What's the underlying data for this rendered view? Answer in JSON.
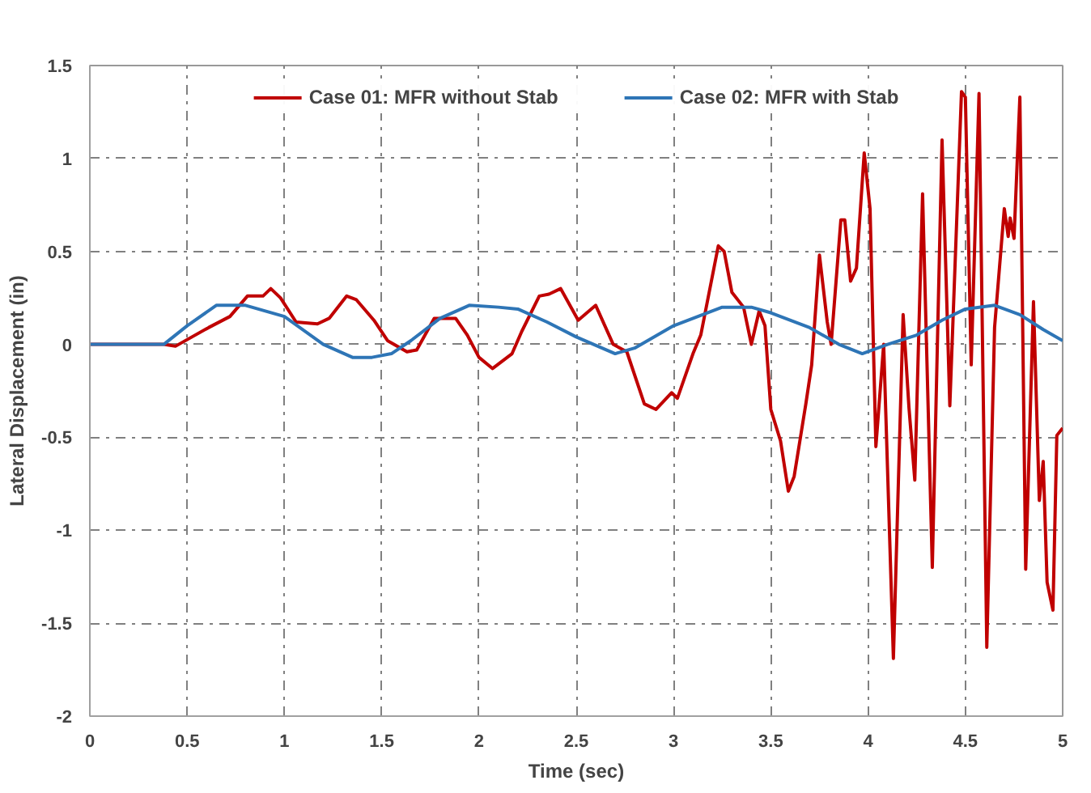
{
  "chart_data": {
    "type": "line",
    "xlabel": "Time (sec)",
    "ylabel": "Lateral Displacement (in)",
    "xlim": [
      0,
      5
    ],
    "xticks": [
      0,
      0.5,
      1,
      1.5,
      2,
      2.5,
      3,
      3.5,
      4,
      4.5,
      5
    ],
    "ylim": [
      -2,
      1.5
    ],
    "yticks": [
      -2,
      -1.5,
      -1,
      -0.5,
      0,
      0.5,
      1,
      1.5
    ],
    "grid": true,
    "legend": "top",
    "line_style": "solid",
    "marker": "none",
    "series": [
      {
        "name": "Case 01: MFR without Stab",
        "color": "#c00000",
        "x": [
          0,
          0.38,
          0.44,
          0.61,
          0.72,
          0.81,
          0.89,
          0.93,
          0.98,
          1.06,
          1.17,
          1.23,
          1.32,
          1.37,
          1.46,
          1.53,
          1.63,
          1.68,
          1.77,
          1.88,
          1.94,
          2.0,
          2.07,
          2.17,
          2.22,
          2.31,
          2.36,
          2.42,
          2.51,
          2.6,
          2.69,
          2.76,
          2.85,
          2.91,
          2.99,
          3.02,
          3.1,
          3.14,
          3.23,
          3.26,
          3.3,
          3.36,
          3.4,
          3.44,
          3.47,
          3.5,
          3.55,
          3.59,
          3.62,
          3.68,
          3.71,
          3.75,
          3.79,
          3.81,
          3.86,
          3.88,
          3.91,
          3.94,
          3.98,
          4.01,
          4.04,
          4.08,
          4.13,
          4.18,
          4.21,
          4.24,
          4.28,
          4.33,
          4.38,
          4.42,
          4.48,
          4.5,
          4.53,
          4.57,
          4.61,
          4.65,
          4.7,
          4.72,
          4.73,
          4.75,
          4.78,
          4.81,
          4.85,
          4.88,
          4.9,
          4.92,
          4.95,
          4.97,
          5.0
        ],
        "values": [
          0,
          0,
          -0.01,
          0.09,
          0.15,
          0.26,
          0.26,
          0.3,
          0.25,
          0.12,
          0.11,
          0.14,
          0.26,
          0.24,
          0.13,
          0.02,
          -0.04,
          -0.03,
          0.14,
          0.14,
          0.05,
          -0.07,
          -0.13,
          -0.05,
          0.07,
          0.26,
          0.27,
          0.3,
          0.13,
          0.21,
          0.0,
          -0.04,
          -0.32,
          -0.35,
          -0.26,
          -0.29,
          -0.05,
          0.05,
          0.53,
          0.5,
          0.28,
          0.2,
          0.0,
          0.18,
          0.1,
          -0.35,
          -0.52,
          -0.79,
          -0.71,
          -0.32,
          -0.11,
          0.48,
          0.12,
          0.0,
          0.67,
          0.67,
          0.34,
          0.41,
          1.03,
          0.73,
          -0.55,
          0.0,
          -1.69,
          0.16,
          -0.34,
          -0.73,
          0.81,
          -1.2,
          1.1,
          -0.33,
          1.36,
          1.33,
          -0.11,
          1.35,
          -1.63,
          0.09,
          0.73,
          0.58,
          0.68,
          0.57,
          1.33,
          -1.21,
          0.23,
          -0.84,
          -0.63,
          -1.28,
          -1.43,
          -0.49,
          -0.45
        ]
      },
      {
        "name": "Case 02: MFR with Stab",
        "color": "#2e75b6",
        "x": [
          0,
          0.38,
          0.5,
          0.65,
          0.8,
          1.0,
          1.2,
          1.35,
          1.45,
          1.55,
          1.65,
          1.8,
          1.95,
          2.1,
          2.2,
          2.35,
          2.5,
          2.7,
          2.8,
          3.0,
          3.25,
          3.4,
          3.5,
          3.7,
          3.85,
          3.97,
          4.1,
          4.25,
          4.38,
          4.5,
          4.65,
          4.78,
          4.9,
          5.0
        ],
        "values": [
          0,
          0,
          0.1,
          0.21,
          0.21,
          0.15,
          0.0,
          -0.07,
          -0.07,
          -0.05,
          0.02,
          0.14,
          0.21,
          0.2,
          0.19,
          0.12,
          0.04,
          -0.05,
          -0.02,
          0.1,
          0.2,
          0.2,
          0.17,
          0.09,
          0.0,
          -0.05,
          0.0,
          0.05,
          0.13,
          0.19,
          0.21,
          0.16,
          0.08,
          0.02
        ]
      }
    ]
  }
}
